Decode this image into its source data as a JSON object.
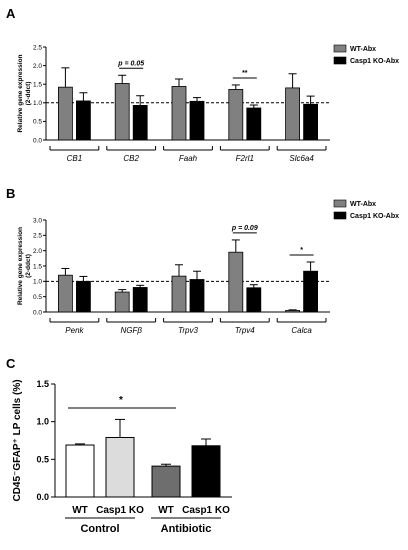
{
  "chart_data": [
    {
      "panel": "A",
      "type": "bar",
      "ylabel": "Relative gene expression\n(2-ddct)",
      "ylim": [
        0,
        2.5
      ],
      "yticks": [
        "0.0",
        "0.5",
        "1.0",
        "1.5",
        "2.0",
        "2.5"
      ],
      "reference_line": 1.0,
      "categories": [
        "CB1",
        "CB2",
        "Faah",
        "F2rl1",
        "Slc6a4"
      ],
      "series": [
        {
          "name": "WT-Abx",
          "color": "#808080",
          "values": [
            1.42,
            1.52,
            1.44,
            1.36,
            1.4
          ],
          "errors": [
            0.52,
            0.22,
            0.2,
            0.12,
            0.38
          ]
        },
        {
          "name": "Casp1 KO-Abx",
          "color": "#000000",
          "values": [
            1.05,
            0.93,
            1.04,
            0.86,
            0.96
          ],
          "errors": [
            0.22,
            0.26,
            0.1,
            0.08,
            0.22
          ]
        }
      ],
      "annotations": [
        {
          "category": "CB2",
          "text": "p = 0.05"
        },
        {
          "category": "F2rl1",
          "text": "**"
        }
      ]
    },
    {
      "panel": "B",
      "type": "bar",
      "ylabel": "Relative gene expression\n(2-ddct)",
      "ylim": [
        0,
        3.0
      ],
      "yticks": [
        "0.0",
        "0.5",
        "1.0",
        "1.5",
        "2.0",
        "2.5",
        "3.0"
      ],
      "reference_line": 1.0,
      "categories": [
        "Penk",
        "NGFβ",
        "Trpv3",
        "Trpv4",
        "Calca"
      ],
      "series": [
        {
          "name": "WT-Abx",
          "color": "#808080",
          "values": [
            1.2,
            0.65,
            1.17,
            1.95,
            0.05
          ],
          "errors": [
            0.22,
            0.08,
            0.37,
            0.4,
            0.02
          ]
        },
        {
          "name": "Casp1 KO-Abx",
          "color": "#000000",
          "values": [
            1.0,
            0.8,
            1.06,
            0.79,
            1.33
          ],
          "errors": [
            0.16,
            0.07,
            0.27,
            0.1,
            0.3
          ]
        }
      ],
      "annotations": [
        {
          "category": "Trpv4",
          "text": "p = 0.09"
        },
        {
          "category": "Calca",
          "text": "*"
        }
      ]
    },
    {
      "panel": "C",
      "type": "bar",
      "ylabel": "CD45⁻GFAP⁺ LP cells (%)",
      "ylim": [
        0,
        1.5
      ],
      "yticks": [
        "0.0",
        "0.5",
        "1.0",
        "1.5"
      ],
      "categories": [
        "WT",
        "Casp1 KO",
        "WT",
        "Casp1 KO"
      ],
      "groups": [
        "Control",
        "Antibiotic"
      ],
      "values": [
        0.69,
        0.79,
        0.41,
        0.68
      ],
      "errors": [
        0.015,
        0.24,
        0.025,
        0.09
      ],
      "colors": [
        "#ffffff",
        "#dcdcdc",
        "#6e6e6e",
        "#000000"
      ],
      "annotations": [
        {
          "text": "*"
        }
      ]
    }
  ]
}
